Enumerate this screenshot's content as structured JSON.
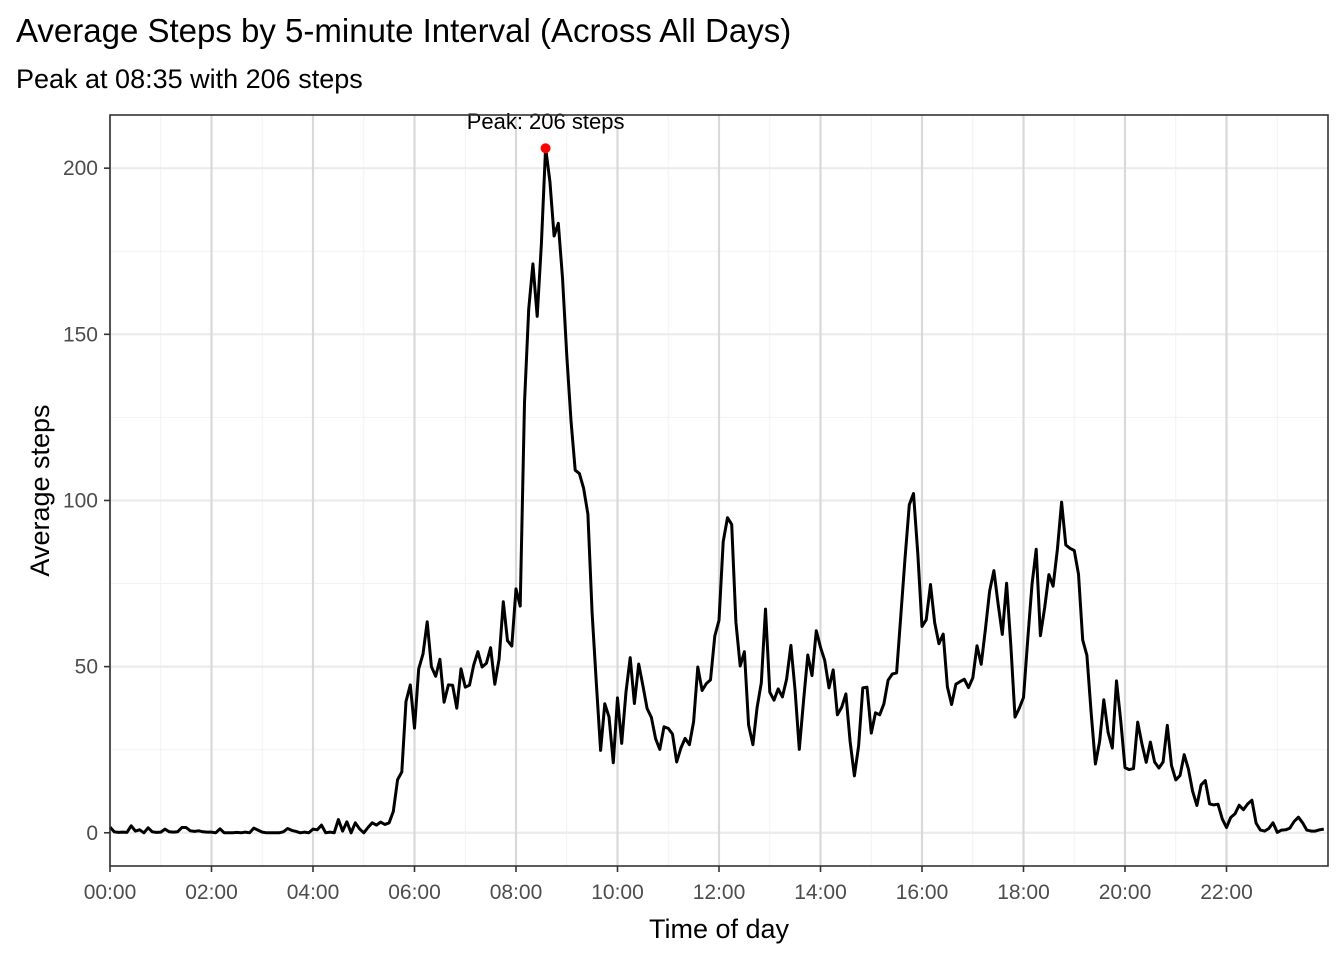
{
  "chart_data": {
    "type": "line",
    "title": "Average Steps by 5-minute Interval (Across All Days)",
    "subtitle": "Peak at 08:35 with 206 steps",
    "xlabel": "Time of day",
    "ylabel": "Average steps",
    "x_unit": "hour of day",
    "xlim": [
      0,
      24
    ],
    "ylim": [
      -10,
      216
    ],
    "x_ticks": [
      0,
      2,
      4,
      6,
      8,
      10,
      12,
      14,
      16,
      18,
      20,
      22
    ],
    "x_tick_labels": [
      "00:00",
      "02:00",
      "04:00",
      "06:00",
      "08:00",
      "10:00",
      "12:00",
      "14:00",
      "16:00",
      "18:00",
      "20:00",
      "22:00"
    ],
    "y_ticks": [
      0,
      50,
      100,
      150,
      200
    ],
    "y_tick_labels": [
      "0",
      "50",
      "100",
      "150",
      "200"
    ],
    "grid": true,
    "legend": "none",
    "line_color": "#000000",
    "peak": {
      "x": 8.583,
      "y": 206,
      "label": "Peak: 206 steps",
      "color": "#ff0000"
    },
    "series": [
      {
        "points": [
          [
            0,
            1.7
          ],
          [
            0.083,
            0.3
          ],
          [
            0.167,
            0.1
          ],
          [
            0.25,
            0.2
          ],
          [
            0.333,
            0.1
          ],
          [
            0.417,
            2.1
          ],
          [
            0.5,
            0.5
          ],
          [
            0.583,
            0.9
          ],
          [
            0.667,
            0
          ],
          [
            0.75,
            1.5
          ],
          [
            0.833,
            0.3
          ],
          [
            0.917,
            0.1
          ],
          [
            1,
            0.2
          ],
          [
            1.083,
            1.1
          ],
          [
            1.167,
            0.3
          ],
          [
            1.25,
            0.2
          ],
          [
            1.333,
            0.3
          ],
          [
            1.417,
            1.6
          ],
          [
            1.5,
            1.6
          ],
          [
            1.583,
            0.6
          ],
          [
            1.667,
            0.4
          ],
          [
            1.75,
            0.6
          ],
          [
            1.833,
            0.3
          ],
          [
            1.917,
            0.2
          ],
          [
            2,
            0.2
          ],
          [
            2.083,
            0
          ],
          [
            2.167,
            1.2
          ],
          [
            2.25,
            0
          ],
          [
            2.333,
            0
          ],
          [
            2.417,
            0
          ],
          [
            2.5,
            0.1
          ],
          [
            2.583,
            0
          ],
          [
            2.667,
            0.2
          ],
          [
            2.75,
            0
          ],
          [
            2.833,
            1.4
          ],
          [
            2.917,
            0.8
          ],
          [
            3,
            0.2
          ],
          [
            3.083,
            0
          ],
          [
            3.167,
            0
          ],
          [
            3.25,
            0
          ],
          [
            3.333,
            0
          ],
          [
            3.417,
            0.3
          ],
          [
            3.5,
            1.3
          ],
          [
            3.583,
            0.7
          ],
          [
            3.667,
            0.4
          ],
          [
            3.75,
            0
          ],
          [
            3.833,
            0.2
          ],
          [
            3.917,
            0
          ],
          [
            4,
            1.1
          ],
          [
            4.083,
            0.9
          ],
          [
            4.167,
            2.3
          ],
          [
            4.25,
            0
          ],
          [
            4.333,
            0.2
          ],
          [
            4.417,
            0
          ],
          [
            4.5,
            4
          ],
          [
            4.583,
            0.5
          ],
          [
            4.667,
            3.3
          ],
          [
            4.75,
            0
          ],
          [
            4.833,
            3
          ],
          [
            4.917,
            1.2
          ],
          [
            5,
            0
          ],
          [
            5.083,
            1.6
          ],
          [
            5.167,
            3
          ],
          [
            5.25,
            2.3
          ],
          [
            5.333,
            3.2
          ],
          [
            5.417,
            2.5
          ],
          [
            5.5,
            3
          ],
          [
            5.583,
            6.4
          ],
          [
            5.667,
            16
          ],
          [
            5.75,
            18.3
          ],
          [
            5.833,
            39.5
          ],
          [
            5.917,
            44.5
          ],
          [
            6,
            31.5
          ],
          [
            6.083,
            49.3
          ],
          [
            6.167,
            53.8
          ],
          [
            6.25,
            63.5
          ],
          [
            6.333,
            50
          ],
          [
            6.417,
            47.1
          ],
          [
            6.5,
            52.2
          ],
          [
            6.583,
            39.3
          ],
          [
            6.667,
            44.5
          ],
          [
            6.75,
            44.4
          ],
          [
            6.833,
            37.5
          ],
          [
            6.917,
            49.3
          ],
          [
            7,
            43.8
          ],
          [
            7.083,
            44.4
          ],
          [
            7.167,
            50.5
          ],
          [
            7.25,
            54.5
          ],
          [
            7.333,
            49.9
          ],
          [
            7.417,
            51
          ],
          [
            7.5,
            55.7
          ],
          [
            7.583,
            44.7
          ],
          [
            7.667,
            52.3
          ],
          [
            7.75,
            69.5
          ],
          [
            7.833,
            57.8
          ],
          [
            7.917,
            56.2
          ],
          [
            8,
            73.4
          ],
          [
            8.083,
            68.2
          ],
          [
            8.167,
            129.4
          ],
          [
            8.25,
            157.5
          ],
          [
            8.333,
            171.2
          ],
          [
            8.417,
            155.4
          ],
          [
            8.5,
            177.3
          ],
          [
            8.583,
            206.2
          ],
          [
            8.667,
            196
          ],
          [
            8.75,
            179.6
          ],
          [
            8.833,
            183.4
          ],
          [
            8.917,
            167
          ],
          [
            9,
            143.5
          ],
          [
            9.083,
            124
          ],
          [
            9.167,
            109.1
          ],
          [
            9.25,
            108.1
          ],
          [
            9.333,
            103.7
          ],
          [
            9.417,
            95.9
          ],
          [
            9.5,
            66.2
          ],
          [
            9.583,
            45.2
          ],
          [
            9.667,
            24.8
          ],
          [
            9.75,
            38.8
          ],
          [
            9.833,
            34.9
          ],
          [
            9.917,
            21.1
          ],
          [
            10,
            40.6
          ],
          [
            10.083,
            26.9
          ],
          [
            10.167,
            42.4
          ],
          [
            10.25,
            52.7
          ],
          [
            10.333,
            38.9
          ],
          [
            10.417,
            50.8
          ],
          [
            10.5,
            44.3
          ],
          [
            10.583,
            37.4
          ],
          [
            10.667,
            34.7
          ],
          [
            10.75,
            28.3
          ],
          [
            10.833,
            25.1
          ],
          [
            10.917,
            31.9
          ],
          [
            11,
            31.4
          ],
          [
            11.083,
            29.7
          ],
          [
            11.167,
            21.3
          ],
          [
            11.25,
            25.5
          ],
          [
            11.333,
            28.4
          ],
          [
            11.417,
            26.5
          ],
          [
            11.5,
            33.4
          ],
          [
            11.583,
            49.9
          ],
          [
            11.667,
            42.8
          ],
          [
            11.75,
            44.9
          ],
          [
            11.833,
            46
          ],
          [
            11.917,
            59.2
          ],
          [
            12,
            63.9
          ],
          [
            12.083,
            87.6
          ],
          [
            12.167,
            94.8
          ],
          [
            12.25,
            92.8
          ],
          [
            12.333,
            63.4
          ],
          [
            12.417,
            50.2
          ],
          [
            12.5,
            54.5
          ],
          [
            12.583,
            32.4
          ],
          [
            12.667,
            26.5
          ],
          [
            12.75,
            37.7
          ],
          [
            12.833,
            45.1
          ],
          [
            12.917,
            67.3
          ],
          [
            13,
            42.3
          ],
          [
            13.083,
            39.9
          ],
          [
            13.167,
            43.3
          ],
          [
            13.25,
            40.9
          ],
          [
            13.333,
            46.2
          ],
          [
            13.417,
            56.4
          ],
          [
            13.5,
            42.8
          ],
          [
            13.583,
            25.1
          ],
          [
            13.667,
            39.9
          ],
          [
            13.75,
            53.5
          ],
          [
            13.833,
            47.3
          ],
          [
            13.917,
            60.8
          ],
          [
            14,
            55.8
          ],
          [
            14.083,
            51.9
          ],
          [
            14.167,
            43.6
          ],
          [
            14.25,
            49
          ],
          [
            14.333,
            35.5
          ],
          [
            14.417,
            37.8
          ],
          [
            14.5,
            41.8
          ],
          [
            14.583,
            27.5
          ],
          [
            14.667,
            17.1
          ],
          [
            14.75,
            26.1
          ],
          [
            14.833,
            43.6
          ],
          [
            14.917,
            43.8
          ],
          [
            15,
            30
          ],
          [
            15.083,
            36.1
          ],
          [
            15.167,
            35.5
          ],
          [
            15.25,
            38.8
          ],
          [
            15.333,
            45.9
          ],
          [
            15.417,
            47.8
          ],
          [
            15.5,
            48.1
          ],
          [
            15.583,
            65.3
          ],
          [
            15.667,
            82.9
          ],
          [
            15.75,
            98.7
          ],
          [
            15.833,
            102.1
          ],
          [
            15.917,
            84
          ],
          [
            16,
            62.1
          ],
          [
            16.083,
            64.1
          ],
          [
            16.167,
            74.7
          ],
          [
            16.25,
            63.2
          ],
          [
            16.333,
            56.9
          ],
          [
            16.417,
            59.8
          ],
          [
            16.5,
            43.9
          ],
          [
            16.583,
            38.6
          ],
          [
            16.667,
            44.7
          ],
          [
            16.75,
            45.5
          ],
          [
            16.833,
            46.2
          ],
          [
            16.917,
            43.7
          ],
          [
            17,
            46.6
          ],
          [
            17.083,
            56.3
          ],
          [
            17.167,
            50.7
          ],
          [
            17.25,
            61.2
          ],
          [
            17.333,
            72.7
          ],
          [
            17.417,
            78.9
          ],
          [
            17.5,
            68.9
          ],
          [
            17.583,
            59.7
          ],
          [
            17.667,
            75.1
          ],
          [
            17.75,
            56.5
          ],
          [
            17.833,
            34.8
          ],
          [
            17.917,
            37.5
          ],
          [
            18,
            40.7
          ],
          [
            18.083,
            58
          ],
          [
            18.167,
            74.7
          ],
          [
            18.25,
            85.3
          ],
          [
            18.333,
            59.3
          ],
          [
            18.417,
            67.8
          ],
          [
            18.5,
            77.7
          ],
          [
            18.583,
            74.2
          ],
          [
            18.667,
            85.3
          ],
          [
            18.75,
            99.5
          ],
          [
            18.833,
            86.6
          ],
          [
            18.917,
            85.6
          ],
          [
            19,
            84.9
          ],
          [
            19.083,
            77.8
          ],
          [
            19.167,
            58
          ],
          [
            19.25,
            53.4
          ],
          [
            19.333,
            36.3
          ],
          [
            19.417,
            20.7
          ],
          [
            19.5,
            27.4
          ],
          [
            19.583,
            40
          ],
          [
            19.667,
            30.2
          ],
          [
            19.75,
            25.5
          ],
          [
            19.833,
            45.7
          ],
          [
            19.917,
            33.5
          ],
          [
            20,
            19.6
          ],
          [
            20.083,
            19
          ],
          [
            20.167,
            19.3
          ],
          [
            20.25,
            33.3
          ],
          [
            20.333,
            26.8
          ],
          [
            20.417,
            21.2
          ],
          [
            20.5,
            27.3
          ],
          [
            20.583,
            21.3
          ],
          [
            20.667,
            19.5
          ],
          [
            20.75,
            21.3
          ],
          [
            20.833,
            32.3
          ],
          [
            20.917,
            20.2
          ],
          [
            21,
            15.9
          ],
          [
            21.083,
            17.2
          ],
          [
            21.167,
            23.5
          ],
          [
            21.25,
            19.2
          ],
          [
            21.333,
            12.5
          ],
          [
            21.417,
            8.2
          ],
          [
            21.5,
            14.4
          ],
          [
            21.583,
            15.7
          ],
          [
            21.667,
            8.7
          ],
          [
            21.75,
            8.4
          ],
          [
            21.833,
            8.6
          ],
          [
            21.917,
            4.1
          ],
          [
            22,
            1.6
          ],
          [
            22.083,
            4.6
          ],
          [
            22.167,
            5.7
          ],
          [
            22.25,
            8.3
          ],
          [
            22.333,
            6.9
          ],
          [
            22.417,
            8.7
          ],
          [
            22.5,
            9.8
          ],
          [
            22.583,
            2.9
          ],
          [
            22.667,
            0.8
          ],
          [
            22.75,
            0.5
          ],
          [
            22.833,
            1.3
          ],
          [
            22.917,
            3
          ],
          [
            23,
            0.1
          ],
          [
            23.083,
            0.8
          ],
          [
            23.167,
            0.9
          ],
          [
            23.25,
            1.4
          ],
          [
            23.333,
            3.4
          ],
          [
            23.417,
            4.7
          ],
          [
            23.5,
            3
          ],
          [
            23.583,
            0.8
          ],
          [
            23.667,
            0.5
          ],
          [
            23.75,
            0.5
          ],
          [
            23.833,
            0.9
          ],
          [
            23.917,
            1.1
          ]
        ]
      }
    ]
  }
}
